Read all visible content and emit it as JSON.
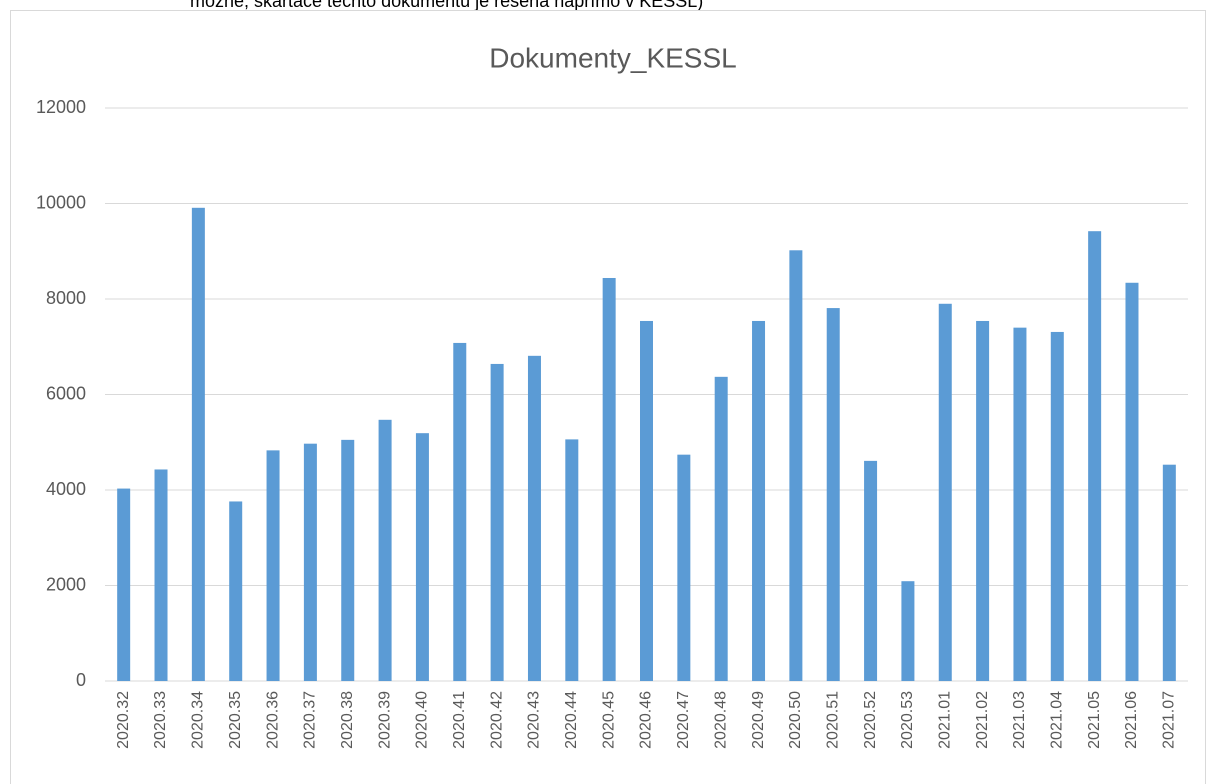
{
  "caption": "možné, skartace těchto dokumentu je řešena napřímo v KESSL)",
  "chart_data": {
    "type": "bar",
    "title": "Dokumenty_KESSL",
    "categories": [
      "2020.32",
      "2020.33",
      "2020.34",
      "2020.35",
      "2020.36",
      "2020.37",
      "2020.38",
      "2020.39",
      "2020.40",
      "2020.41",
      "2020.42",
      "2020.43",
      "2020.44",
      "2020.45",
      "2020.46",
      "2020.47",
      "2020.48",
      "2020.49",
      "2020.50",
      "2020.51",
      "2020.52",
      "2020.53",
      "2021.01",
      "2021.02",
      "2021.03",
      "2021.04",
      "2021.05",
      "2021.06",
      "2021.07"
    ],
    "values": [
      4030,
      4430,
      9910,
      3760,
      4830,
      4970,
      5050,
      5470,
      5190,
      7080,
      6640,
      6810,
      5060,
      8440,
      7540,
      4740,
      6370,
      7540,
      9020,
      7810,
      4610,
      2090,
      7900,
      7540,
      7400,
      7310,
      9420,
      8340,
      4530
    ],
    "color": "#5b9bd5",
    "ylim": [
      0,
      12000
    ],
    "yticks": [
      0,
      2000,
      4000,
      6000,
      8000,
      10000,
      12000
    ],
    "grid": true
  }
}
